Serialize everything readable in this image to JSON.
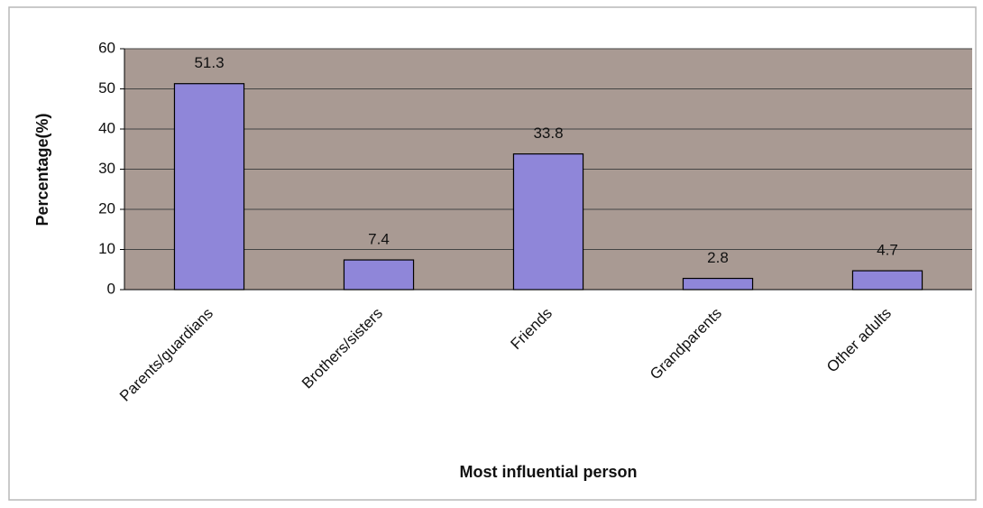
{
  "chart_data": {
    "type": "bar",
    "x_label": "Most influential person",
    "y_label": "Percentage(%)",
    "categories": [
      "Parents/guardians",
      "Brothers/sisters",
      "Friends",
      "Grandparents",
      "Other adults"
    ],
    "values": [
      51.3,
      7.4,
      33.8,
      2.8,
      4.7
    ],
    "color": "#8f86d9",
    "ylim": [
      0,
      60
    ],
    "yticks": [
      0,
      10,
      20,
      30,
      40,
      50,
      60
    ],
    "grid": true
  }
}
